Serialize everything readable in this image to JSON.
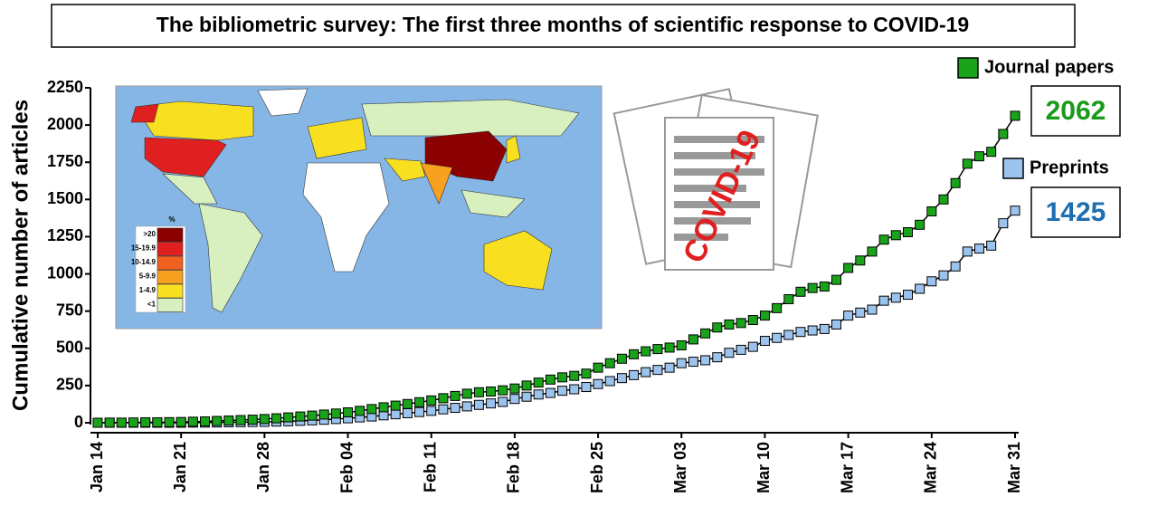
{
  "chart_data": {
    "type": "line",
    "title": "The bibliometric survey: The first three months of scientific response to COVID-19",
    "y_label": "Cumulative number of articles",
    "categories": [
      "Jan 14",
      null,
      null,
      null,
      null,
      null,
      null,
      "Jan 21",
      null,
      null,
      null,
      null,
      null,
      null,
      "Jan 28",
      null,
      null,
      null,
      null,
      null,
      null,
      "Feb 04",
      null,
      null,
      null,
      null,
      null,
      null,
      "Feb 11",
      null,
      null,
      null,
      null,
      null,
      null,
      "Feb 18",
      null,
      null,
      null,
      null,
      null,
      null,
      "Feb 25",
      null,
      null,
      null,
      null,
      null,
      null,
      "Mar 03",
      null,
      null,
      null,
      null,
      null,
      null,
      "Mar 10",
      null,
      null,
      null,
      null,
      null,
      null,
      "Mar 17",
      null,
      null,
      null,
      null,
      null,
      null,
      "Mar 24",
      null,
      null,
      null,
      null,
      null,
      null,
      "Mar 31"
    ],
    "series": [
      {
        "name": "Journal papers",
        "color": "#1aa31a",
        "label_color": "#1a9a1a",
        "values": [
          0,
          1,
          1,
          2,
          3,
          3,
          4,
          5,
          7,
          9,
          12,
          15,
          18,
          21,
          25,
          30,
          36,
          42,
          48,
          55,
          62,
          70,
          80,
          92,
          104,
          115,
          126,
          138,
          150,
          165,
          180,
          195,
          205,
          210,
          218,
          230,
          250,
          270,
          290,
          305,
          315,
          330,
          370,
          400,
          430,
          460,
          480,
          495,
          505,
          520,
          560,
          600,
          640,
          660,
          670,
          690,
          720,
          770,
          830,
          880,
          905,
          915,
          960,
          1040,
          1090,
          1150,
          1230,
          1260,
          1280,
          1330,
          1420,
          1500,
          1610,
          1740,
          1790,
          1820,
          1940,
          2062
        ]
      },
      {
        "name": "Preprints",
        "color": "#9cc3ee",
        "label_color": "#1f6fb0",
        "values": [
          0,
          0,
          0,
          0,
          0,
          0,
          0,
          0,
          1,
          1,
          2,
          3,
          4,
          5,
          6,
          8,
          10,
          13,
          16,
          20,
          25,
          30,
          36,
          42,
          50,
          57,
          64,
          72,
          80,
          90,
          100,
          110,
          120,
          130,
          140,
          160,
          175,
          190,
          200,
          215,
          225,
          240,
          260,
          280,
          300,
          320,
          340,
          355,
          370,
          400,
          410,
          420,
          440,
          470,
          490,
          510,
          550,
          570,
          590,
          610,
          620,
          630,
          660,
          720,
          740,
          760,
          820,
          840,
          860,
          900,
          950,
          990,
          1050,
          1150,
          1170,
          1190,
          1340,
          1425
        ]
      }
    ],
    "ylim": [
      0,
      2250
    ],
    "yticks": [
      0,
      250,
      500,
      750,
      1000,
      1250,
      1500,
      1750,
      2000,
      2250
    ],
    "grid": false,
    "inset_annotation": "COVID-19",
    "map_legend": {
      "title": "%",
      "items": [
        {
          "label": ">20",
          "color": "#8b0000"
        },
        {
          "label": "15-19.9",
          "color": "#e02020"
        },
        {
          "label": "10-14.9",
          "color": "#f06020"
        },
        {
          "label": "5-9.9",
          "color": "#f8a020"
        },
        {
          "label": "1-4.9",
          "color": "#f8e020"
        },
        {
          "label": "<1",
          "color": "#d8efc0"
        }
      ]
    }
  }
}
